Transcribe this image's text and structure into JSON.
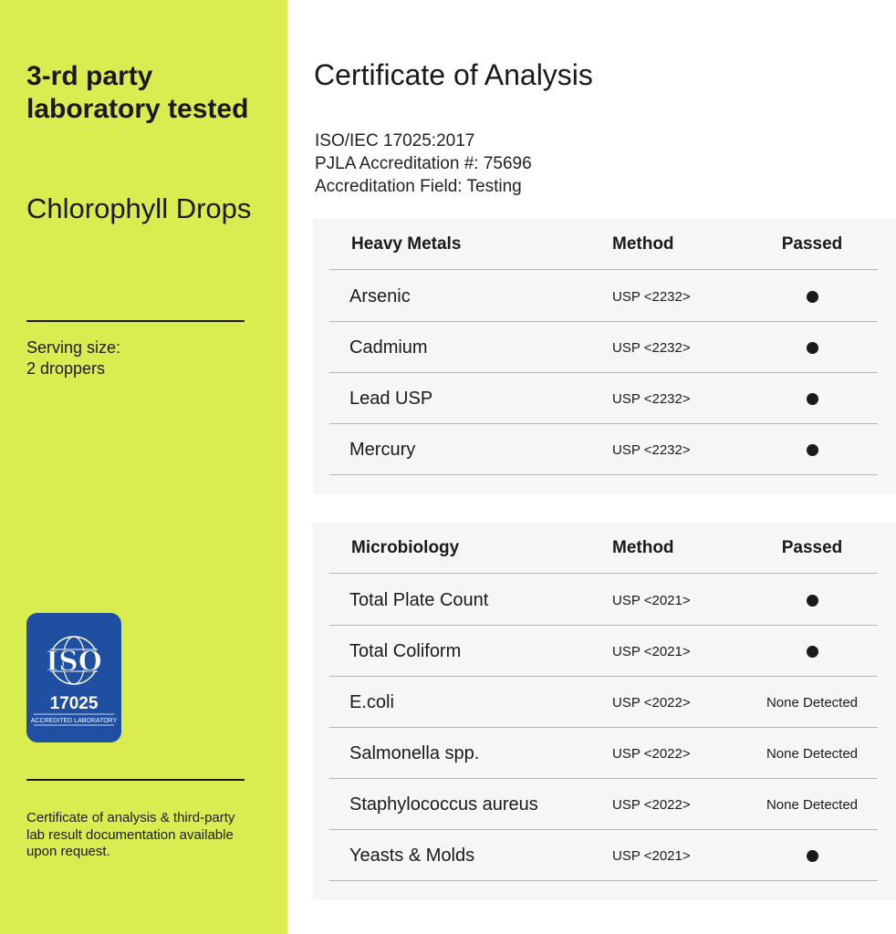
{
  "left": {
    "headline": "3-rd party laboratory tested",
    "product": "Chlorophyll Drops",
    "serving": [
      "Serving size:",
      "2 droppers"
    ],
    "badge": {
      "ring_text": "International Organization for Standardization",
      "logo": "ISO",
      "number": "17025",
      "caption": "ACCREDITED LABORATORY",
      "color": "#1f4fa0"
    },
    "note": "Certificate of analysis & third-party lab result documentation available upon request.",
    "bg_color": "#d9ec50"
  },
  "main": {
    "title": "Certificate of Analysis",
    "accreditation": [
      "ISO/IEC 17025:2017",
      "PJLA Accreditation #: 75696",
      "Accreditation Field: Testing"
    ],
    "tables": [
      {
        "headers": [
          "Heavy Metals",
          "Method",
          "Passed"
        ],
        "rows": [
          {
            "name": "Arsenic",
            "method": "USP <2232>",
            "result": "passed-dot"
          },
          {
            "name": "Cadmium",
            "method": "USP <2232>",
            "result": "passed-dot"
          },
          {
            "name": "Lead USP",
            "method": "USP <2232>",
            "result": "passed-dot"
          },
          {
            "name": "Mercury",
            "method": "USP <2232>",
            "result": "passed-dot"
          }
        ]
      },
      {
        "headers": [
          "Microbiology",
          "Method",
          "Passed"
        ],
        "rows": [
          {
            "name": "Total Plate Count",
            "method": "USP <2021>",
            "result": "passed-dot"
          },
          {
            "name": "Total Coliform",
            "method": "USP <2021>",
            "result": "passed-dot"
          },
          {
            "name": "E.coli",
            "method": "USP <2022>",
            "result": "None Detected"
          },
          {
            "name": "Salmonella spp.",
            "method": "USP <2022>",
            "result": "None Detected"
          },
          {
            "name": "Staphylococcus aureus",
            "method": "USP <2022>",
            "result": "None Detected"
          },
          {
            "name": "Yeasts & Molds",
            "method": "USP <2021>",
            "result": "passed-dot"
          }
        ]
      }
    ]
  }
}
